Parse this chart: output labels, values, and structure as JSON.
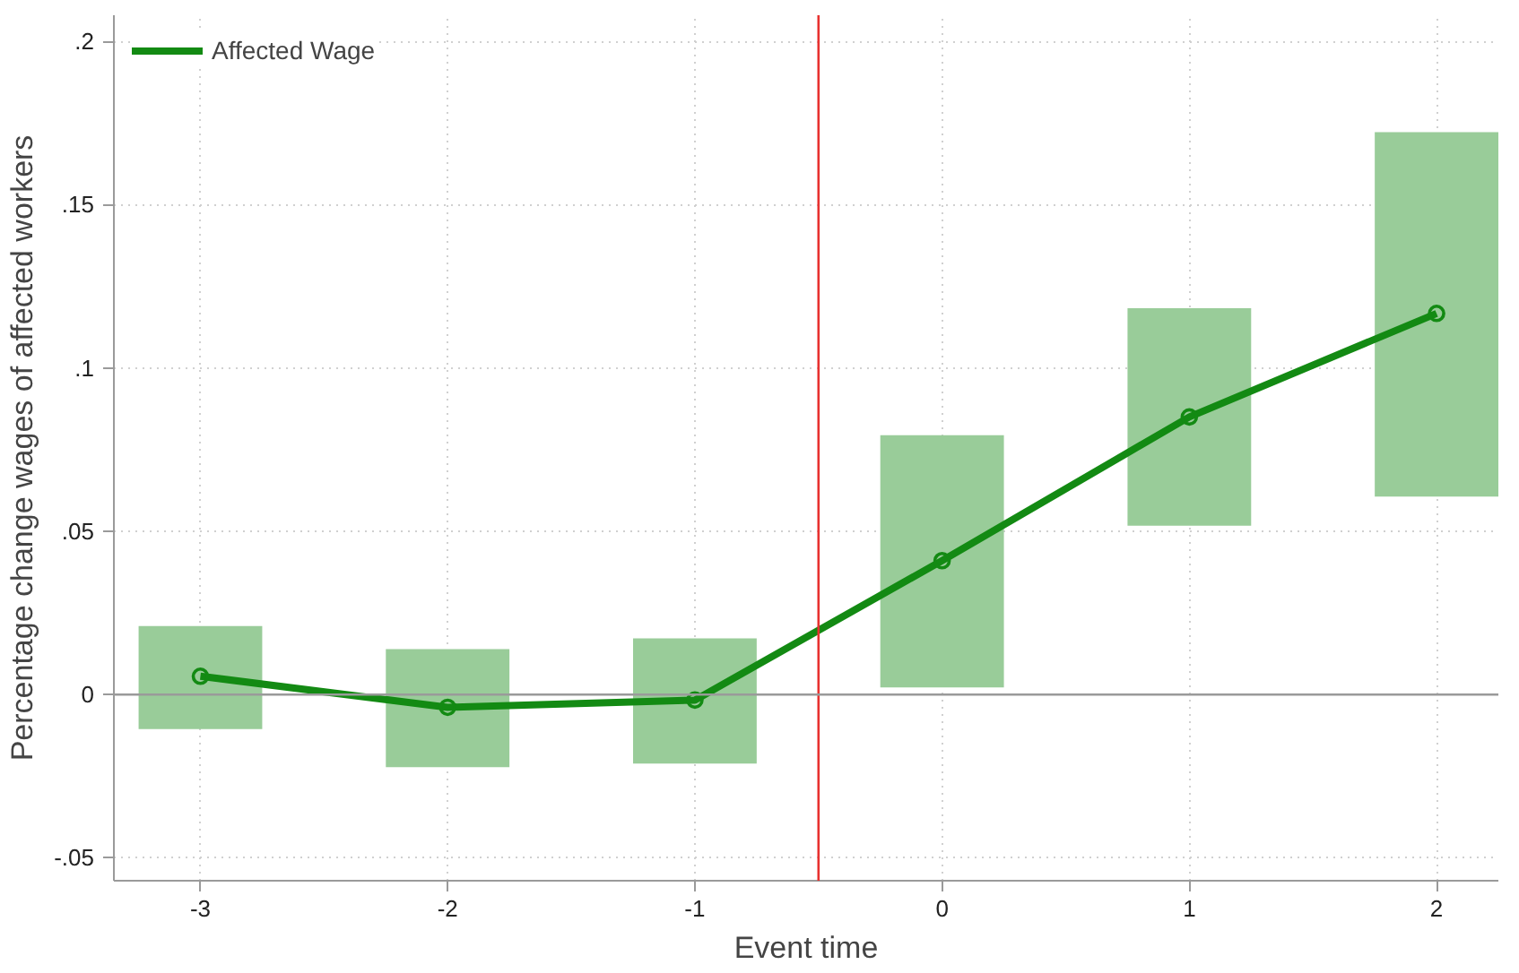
{
  "chart_data": {
    "type": "line",
    "xlabel": "Event time",
    "ylabel": "Percentage change wages of affected workers",
    "x": [
      -3,
      -2,
      -1,
      0,
      1,
      2
    ],
    "series": [
      {
        "type": "bar",
        "color": "#99cc99",
        "base": [
          -0.0106,
          -0.0222,
          -0.0211,
          0.0022,
          0.0517,
          0.0606
        ],
        "values": [
          0.0316,
          0.0361,
          0.0383,
          0.0772,
          0.0666,
          0.1116
        ]
      },
      {
        "name": "Affected Wage",
        "color": "#138a13",
        "values": [
          0.0056,
          -0.0039,
          -0.0017,
          0.041,
          0.085,
          0.1167
        ]
      }
    ],
    "xlim": [
      -3.35,
      2.25
    ],
    "ylim": [
      -0.057,
      0.208
    ],
    "xticks": [
      -3,
      -2,
      -1,
      0,
      1,
      2
    ],
    "yticks": [
      {
        "value": -0.05,
        "label": "-.05"
      },
      0,
      {
        "value": 0.05,
        "label": ".05"
      },
      {
        "value": 0.1,
        "label": ".1"
      },
      {
        "value": 0.15,
        "label": ".15"
      },
      {
        "value": 0.2,
        "label": ".2"
      }
    ],
    "ref_lines": [
      {
        "axis": "x",
        "value": -0.5,
        "color": "#e8312f",
        "line_style": "solid"
      },
      {
        "axis": "y",
        "value": 0,
        "color": "#9a9a9a",
        "line_style": "solid"
      }
    ],
    "grid": true,
    "legend": "top left",
    "marker": "circle",
    "line_style": "solid"
  }
}
